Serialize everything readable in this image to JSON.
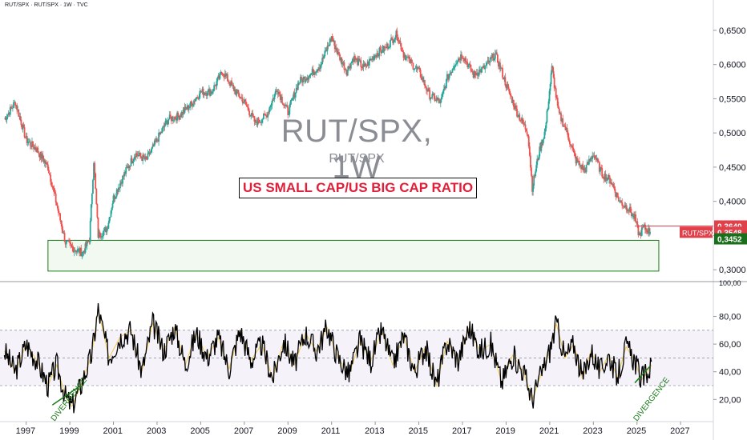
{
  "header": {
    "symbol_line": "RUT/SPX · RUT/SPX · 1W · TVC"
  },
  "watermark": {
    "title": "RUT/SPX, 1W",
    "subtitle": "RUT/SPX"
  },
  "annotation": {
    "box_text": "US SMALL CAP/US BIG CAP RATIO",
    "box_color": "#e0203a"
  },
  "colors": {
    "up": "#26a69a",
    "down": "#ef5350",
    "support_zone": "#1b7a1b",
    "rsi_band": "#7e57c2"
  },
  "chart_data": [
    {
      "type": "line",
      "title": "RUT/SPX, 1W",
      "xlabel": "",
      "ylabel": "",
      "x_ticks": [
        "1997",
        "1999",
        "2001",
        "2003",
        "2005",
        "2007",
        "2009",
        "2011",
        "2013",
        "2015",
        "2017",
        "2019",
        "2021",
        "2023",
        "2025",
        "2027"
      ],
      "y_ticks": [
        "0,3000",
        "0,3500",
        "0,4000",
        "0,4500",
        "0,5000",
        "0,5500",
        "0,6000",
        "0,6500"
      ],
      "xlim": [
        1995.8,
        2028.5
      ],
      "ylim": [
        0.285,
        0.685
      ],
      "grid": false,
      "series": [
        {
          "name": "RUT/SPX",
          "x": [
            1996.0,
            1996.5,
            1997.0,
            1997.5,
            1998.0,
            1998.4,
            1998.8,
            1999.2,
            1999.6,
            1999.9,
            2000.1,
            2000.3,
            2000.7,
            2001.0,
            2001.5,
            2002.0,
            2002.5,
            2003.0,
            2003.5,
            2004.0,
            2004.5,
            2005.0,
            2005.5,
            2006.0,
            2006.5,
            2007.0,
            2007.5,
            2008.0,
            2008.5,
            2009.0,
            2009.5,
            2010.0,
            2010.5,
            2011.0,
            2011.3,
            2011.7,
            2012.0,
            2012.5,
            2013.0,
            2013.5,
            2014.0,
            2014.3,
            2014.7,
            2015.0,
            2015.5,
            2016.0,
            2016.3,
            2016.7,
            2017.0,
            2017.5,
            2018.0,
            2018.5,
            2018.8,
            2019.0,
            2019.5,
            2020.0,
            2020.2,
            2020.5,
            2020.8,
            2021.1,
            2021.4,
            2021.8,
            2022.2,
            2022.6,
            2023.0,
            2023.4,
            2023.8,
            2024.2,
            2024.6,
            2024.9,
            2025.1,
            2025.3,
            2025.6
          ],
          "values": [
            0.52,
            0.545,
            0.49,
            0.475,
            0.45,
            0.395,
            0.34,
            0.33,
            0.325,
            0.345,
            0.46,
            0.35,
            0.36,
            0.405,
            0.44,
            0.47,
            0.46,
            0.49,
            0.52,
            0.525,
            0.54,
            0.56,
            0.56,
            0.59,
            0.565,
            0.545,
            0.515,
            0.525,
            0.565,
            0.53,
            0.575,
            0.585,
            0.6,
            0.64,
            0.615,
            0.59,
            0.61,
            0.595,
            0.615,
            0.625,
            0.645,
            0.615,
            0.6,
            0.59,
            0.555,
            0.545,
            0.58,
            0.605,
            0.615,
            0.585,
            0.595,
            0.615,
            0.59,
            0.57,
            0.53,
            0.5,
            0.42,
            0.47,
            0.505,
            0.595,
            0.53,
            0.5,
            0.46,
            0.445,
            0.47,
            0.44,
            0.43,
            0.4,
            0.39,
            0.375,
            0.35,
            0.362,
            0.355
          ]
        }
      ],
      "last_value_labels": [
        {
          "text": "0,3640",
          "value": 0.364,
          "color": "#e0404a"
        },
        {
          "text": "0,3548",
          "value": 0.3548,
          "color": "#e0404a",
          "series_tag": "RUT/SPX"
        },
        {
          "text": "0,3452",
          "value": 0.3452,
          "color": "#1b6e1b"
        }
      ],
      "support_zone": {
        "x_range": [
          1998.0,
          2026.0
        ],
        "y_range": [
          0.298,
          0.343
        ]
      }
    },
    {
      "type": "line",
      "title": "",
      "y_ticks": [
        "20,00",
        "40,00",
        "60,00",
        "80,00"
      ],
      "top_tick": "100,00",
      "xlim": [
        1995.8,
        2028.5
      ],
      "ylim": [
        4,
        104
      ],
      "band": [
        30,
        70
      ],
      "midline": 50,
      "series": [
        {
          "name": "",
          "x": [
            1996.0,
            1996.5,
            1997.0,
            1997.5,
            1998.0,
            1998.4,
            1998.8,
            1999.1,
            1999.5,
            2000.0,
            2000.3,
            2000.8,
            2001.3,
            2001.8,
            2002.3,
            2002.8,
            2003.3,
            2003.8,
            2004.3,
            2004.8,
            2005.3,
            2005.8,
            2006.3,
            2006.8,
            2007.3,
            2007.8,
            2008.3,
            2008.8,
            2009.3,
            2009.8,
            2010.3,
            2010.8,
            2011.3,
            2011.8,
            2012.3,
            2012.8,
            2013.3,
            2013.8,
            2014.3,
            2014.8,
            2015.3,
            2015.8,
            2016.3,
            2016.8,
            2017.3,
            2017.8,
            2018.3,
            2018.8,
            2019.3,
            2019.8,
            2020.2,
            2020.6,
            2021.0,
            2021.3,
            2021.7,
            2022.1,
            2022.5,
            2022.9,
            2023.3,
            2023.7,
            2024.1,
            2024.5,
            2024.9,
            2025.2,
            2025.5,
            2025.7
          ],
          "values": [
            55,
            40,
            60,
            48,
            30,
            45,
            22,
            15,
            30,
            52,
            85,
            50,
            65,
            70,
            40,
            75,
            55,
            72,
            45,
            68,
            50,
            65,
            42,
            70,
            48,
            60,
            35,
            62,
            45,
            68,
            55,
            72,
            50,
            38,
            62,
            48,
            70,
            45,
            66,
            40,
            58,
            30,
            62,
            48,
            72,
            55,
            60,
            32,
            52,
            40,
            20,
            38,
            55,
            75,
            50,
            60,
            35,
            55,
            40,
            52,
            36,
            58,
            48,
            34,
            40,
            46
          ]
        }
      ]
    }
  ],
  "labels": {
    "divergence_left": "DIVERGENCE",
    "divergence_right": "DIVERGENCE",
    "last_price_tag": "RUT/SPX"
  }
}
